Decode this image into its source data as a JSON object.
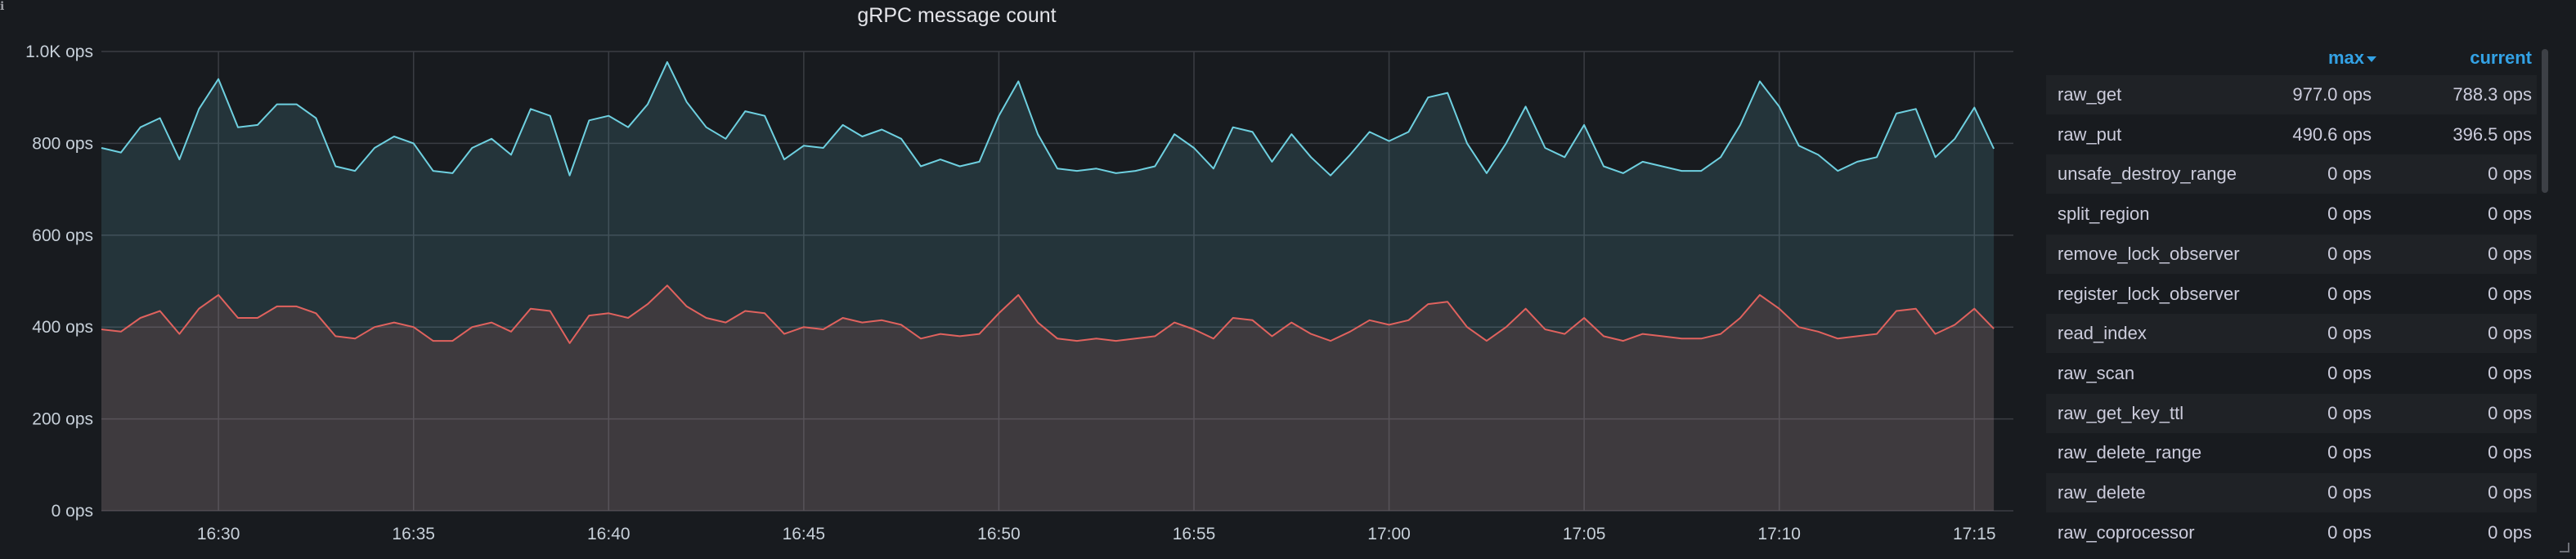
{
  "panel": {
    "title": "gRPC message count",
    "info_icon": "info-icon"
  },
  "chart_data": {
    "type": "area",
    "title": "gRPC message count",
    "xlabel": "",
    "ylabel": "",
    "ylim": [
      0,
      1000
    ],
    "x_start": "16:27:00",
    "x_end": "17:16:00",
    "y_ticks": [
      "0 ops",
      "200 ops",
      "400 ops",
      "600 ops",
      "800 ops",
      "1.0K ops"
    ],
    "x_ticks": [
      "16:30",
      "16:35",
      "16:40",
      "16:45",
      "16:50",
      "16:55",
      "17:00",
      "17:05",
      "17:10",
      "17:15"
    ],
    "grid": true,
    "legend_position": "right",
    "x_times": [
      "16:27:00",
      "16:27:30",
      "16:28:00",
      "16:28:30",
      "16:29:00",
      "16:29:30",
      "16:30:00",
      "16:30:30",
      "16:31:00",
      "16:31:30",
      "16:32:00",
      "16:32:30",
      "16:33:00",
      "16:33:30",
      "16:34:00",
      "16:34:30",
      "16:35:00",
      "16:35:30",
      "16:36:00",
      "16:36:30",
      "16:37:00",
      "16:37:30",
      "16:38:00",
      "16:38:30",
      "16:39:00",
      "16:39:30",
      "16:40:00",
      "16:40:30",
      "16:41:00",
      "16:41:30",
      "16:42:00",
      "16:42:30",
      "16:43:00",
      "16:43:30",
      "16:44:00",
      "16:44:30",
      "16:45:00",
      "16:45:30",
      "16:46:00",
      "16:46:30",
      "16:47:00",
      "16:47:30",
      "16:48:00",
      "16:48:30",
      "16:49:00",
      "16:49:30",
      "16:50:00",
      "16:50:30",
      "16:51:00",
      "16:51:30",
      "16:52:00",
      "16:52:30",
      "16:53:00",
      "16:53:30",
      "16:54:00",
      "16:54:30",
      "16:55:00",
      "16:55:30",
      "16:56:00",
      "16:56:30",
      "16:57:00",
      "16:57:30",
      "16:58:00",
      "16:58:30",
      "16:59:00",
      "16:59:30",
      "17:00:00",
      "17:00:30",
      "17:01:00",
      "17:01:30",
      "17:02:00",
      "17:02:30",
      "17:03:00",
      "17:03:30",
      "17:04:00",
      "17:04:30",
      "17:05:00",
      "17:05:30",
      "17:06:00",
      "17:06:30",
      "17:07:00",
      "17:07:30",
      "17:08:00",
      "17:08:30",
      "17:09:00",
      "17:09:30",
      "17:10:00",
      "17:10:30",
      "17:11:00",
      "17:11:30",
      "17:12:00",
      "17:12:30",
      "17:13:00",
      "17:13:30",
      "17:14:00",
      "17:14:30",
      "17:15:00",
      "17:15:30",
      "17:16:00"
    ],
    "series": [
      {
        "name": "raw_get",
        "color": "#6ed0e0",
        "values": [
          790,
          780,
          835,
          855,
          765,
          875,
          940,
          835,
          840,
          885,
          885,
          855,
          750,
          740,
          790,
          815,
          800,
          740,
          735,
          790,
          810,
          775,
          875,
          860,
          730,
          850,
          860,
          835,
          885,
          977,
          890,
          835,
          810,
          870,
          860,
          765,
          795,
          790,
          840,
          815,
          830,
          810,
          750,
          765,
          750,
          760,
          860,
          935,
          820,
          745,
          740,
          745,
          735,
          740,
          750,
          820,
          790,
          745,
          835,
          825,
          760,
          820,
          770,
          730,
          775,
          825,
          805,
          825,
          900,
          910,
          800,
          735,
          800,
          880,
          790,
          770,
          840,
          750,
          735,
          760,
          750,
          740,
          740,
          770,
          840,
          935,
          880,
          795,
          775,
          740,
          760,
          770,
          865,
          875,
          770,
          810,
          878,
          788.3
        ]
      },
      {
        "name": "raw_put",
        "color": "#e0625e",
        "values": [
          395,
          390,
          420,
          435,
          385,
          440,
          470,
          420,
          420,
          445,
          445,
          430,
          380,
          375,
          400,
          410,
          400,
          370,
          370,
          400,
          410,
          390,
          440,
          435,
          365,
          425,
          430,
          420,
          450,
          490.6,
          445,
          420,
          410,
          435,
          430,
          385,
          400,
          395,
          420,
          410,
          415,
          405,
          375,
          385,
          380,
          385,
          430,
          470,
          410,
          375,
          370,
          375,
          370,
          375,
          380,
          410,
          395,
          375,
          420,
          415,
          380,
          410,
          385,
          370,
          390,
          415,
          405,
          415,
          450,
          455,
          400,
          370,
          400,
          440,
          395,
          385,
          420,
          380,
          370,
          385,
          380,
          375,
          375,
          385,
          420,
          470,
          440,
          400,
          390,
          375,
          380,
          385,
          435,
          440,
          385,
          405,
          440,
          396.5
        ]
      }
    ]
  },
  "legend": {
    "col_max": "max",
    "col_current": "current",
    "rows": [
      {
        "name": "raw_get",
        "max": "977.0 ops",
        "current": "788.3 ops"
      },
      {
        "name": "raw_put",
        "max": "490.6 ops",
        "current": "396.5 ops"
      },
      {
        "name": "unsafe_destroy_range",
        "max": "0 ops",
        "current": "0 ops"
      },
      {
        "name": "split_region",
        "max": "0 ops",
        "current": "0 ops"
      },
      {
        "name": "remove_lock_observer",
        "max": "0 ops",
        "current": "0 ops"
      },
      {
        "name": "register_lock_observer",
        "max": "0 ops",
        "current": "0 ops"
      },
      {
        "name": "read_index",
        "max": "0 ops",
        "current": "0 ops"
      },
      {
        "name": "raw_scan",
        "max": "0 ops",
        "current": "0 ops"
      },
      {
        "name": "raw_get_key_ttl",
        "max": "0 ops",
        "current": "0 ops"
      },
      {
        "name": "raw_delete_range",
        "max": "0 ops",
        "current": "0 ops"
      },
      {
        "name": "raw_delete",
        "max": "0 ops",
        "current": "0 ops"
      },
      {
        "name": "raw_coprocessor",
        "max": "0 ops",
        "current": "0 ops"
      }
    ]
  }
}
